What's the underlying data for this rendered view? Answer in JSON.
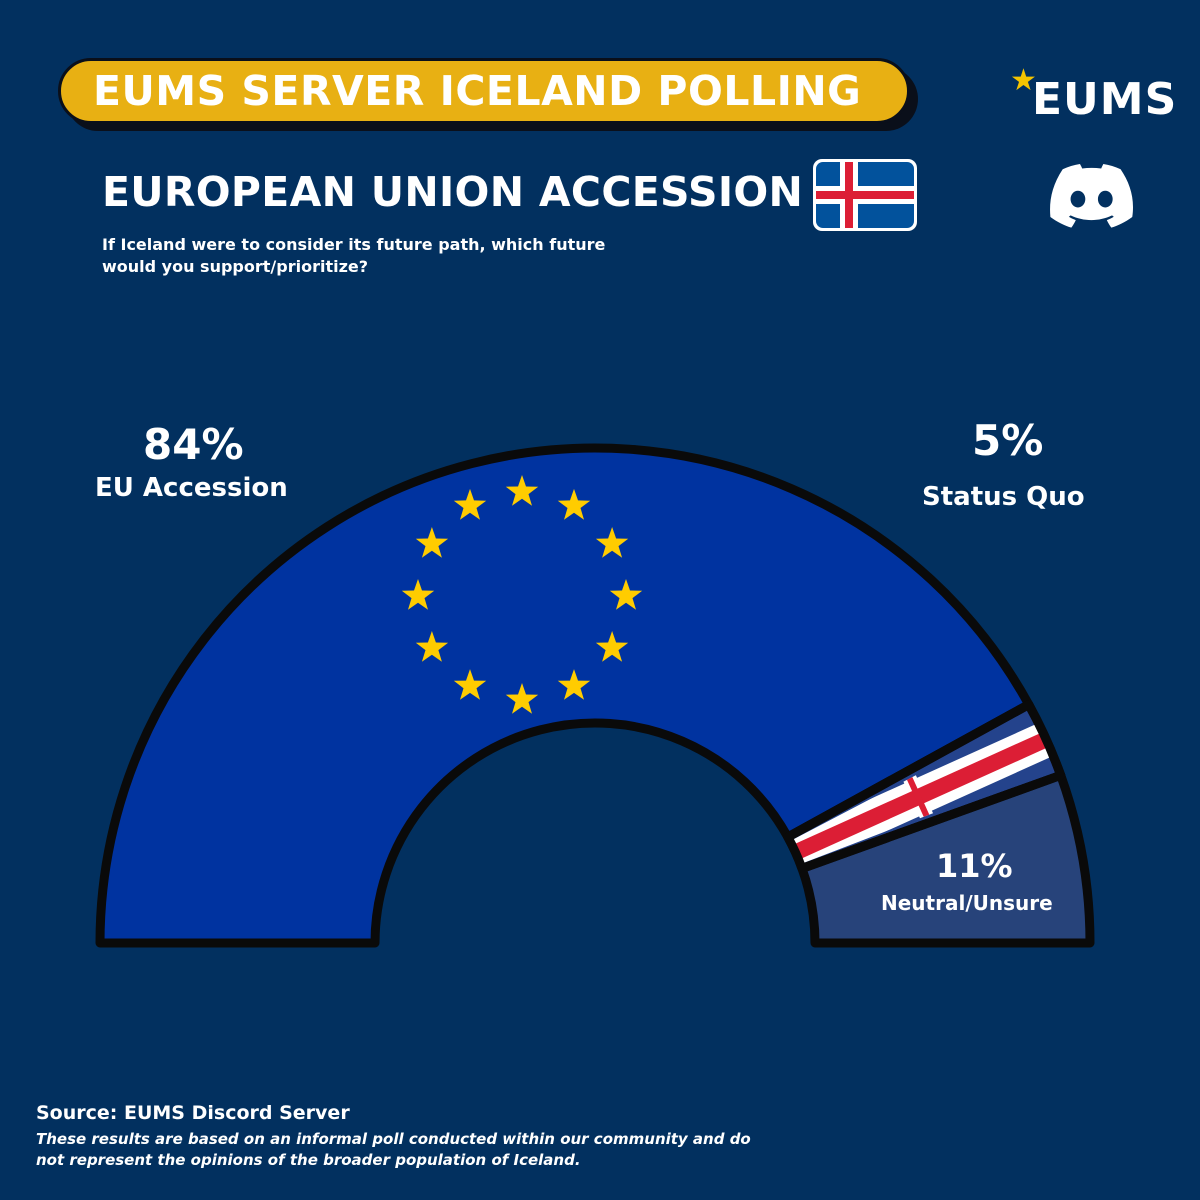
{
  "header": {
    "banner_title": "EUMS SERVER ICELAND POLLING",
    "subtitle": "EUROPEAN UNION ACCESSION",
    "question": "If Iceland were to consider its future path, which future would you support/prioritize?"
  },
  "logo": {
    "text": "EUMS",
    "icon": "star-icon",
    "star_color": "#f5c400"
  },
  "discord": {
    "icon": "discord-icon"
  },
  "chart_data": {
    "type": "pie",
    "layout": "half-donut",
    "categories": [
      "EU Accession",
      "Status Quo",
      "Neutral/Unsure"
    ],
    "values": [
      84,
      5,
      11
    ],
    "labels": [
      "84%",
      "5%",
      "11%"
    ],
    "colors": [
      "#0033a0",
      "#24438c",
      "#27437a"
    ]
  },
  "footer": {
    "source": "Source: EUMS Discord Server",
    "note": "These results are based on an informal poll conducted within our community and do not represent the opinions of the broader population of Iceland."
  },
  "colors": {
    "background": "#02305f",
    "banner": "#e8b013",
    "eu_star": "#ffcc00",
    "iceland_blue": "#02529c",
    "iceland_red": "#dc1e35"
  }
}
